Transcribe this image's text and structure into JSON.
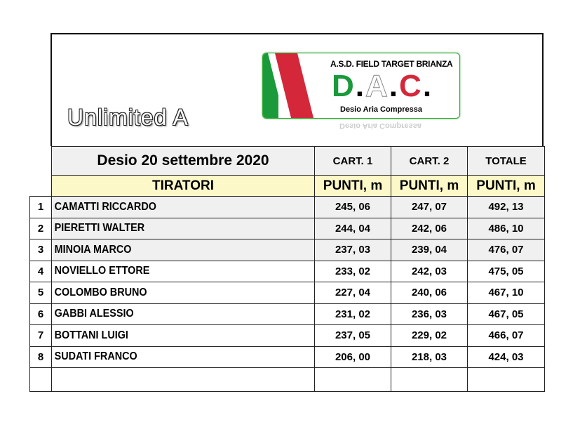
{
  "header": {
    "title": "Unlimited  A",
    "logo": {
      "club": "A.S.D. FIELD TARGET BRIANZA",
      "letters": [
        "D",
        ".",
        "A",
        ".",
        "C",
        "."
      ],
      "subtitle": "Desio Aria Compressa",
      "colors": {
        "green": "#1a9a3a",
        "red": "#d4283a"
      }
    }
  },
  "table": {
    "event": "Desio 20 settembre 2020",
    "columns": [
      "CART. 1",
      "CART. 2",
      "TOTALE"
    ],
    "subheader": {
      "name": "TIRATORI",
      "units": [
        "PUNTI, m",
        "PUNTI, m",
        "PUNTI, m"
      ]
    },
    "rows": [
      {
        "rank": "1",
        "name": "CAMATTI RICCARDO",
        "cart1": "245, 06",
        "cart2": "247, 07",
        "total": "492, 13"
      },
      {
        "rank": "2",
        "name": "PIERETTI WALTER",
        "cart1": "244, 04",
        "cart2": "242, 06",
        "total": "486, 10"
      },
      {
        "rank": "3",
        "name": "MINOIA MARCO",
        "cart1": "237, 03",
        "cart2": "239, 04",
        "total": "476, 07"
      },
      {
        "rank": "4",
        "name": "NOVIELLO ETTORE",
        "cart1": "233, 02",
        "cart2": "242, 03",
        "total": "475, 05"
      },
      {
        "rank": "5",
        "name": "COLOMBO BRUNO",
        "cart1": "227, 04",
        "cart2": "240, 06",
        "total": "467, 10"
      },
      {
        "rank": "6",
        "name": "GABBI ALESSIO",
        "cart1": "231, 02",
        "cart2": "236, 03",
        "total": "467, 05"
      },
      {
        "rank": "7",
        "name": "BOTTANI LUIGI",
        "cart1": "237, 05",
        "cart2": "229, 02",
        "total": "466, 07"
      },
      {
        "rank": "8",
        "name": "SUDATI FRANCO",
        "cart1": "206, 00",
        "cart2": "218, 03",
        "total": "424, 03"
      }
    ]
  }
}
